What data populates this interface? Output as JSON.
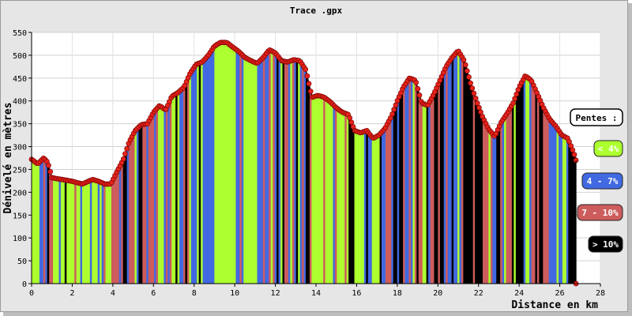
{
  "chart_data": {
    "type": "area",
    "title": "Trace .gpx",
    "xlabel": "Distance en km",
    "ylabel": "Dénivelé en mètres",
    "xlim": [
      0,
      28
    ],
    "ylim": [
      0,
      550
    ],
    "xticks": [
      0,
      2,
      4,
      6,
      8,
      10,
      12,
      14,
      16,
      18,
      20,
      22,
      24,
      26,
      28
    ],
    "yticks": [
      0,
      50,
      100,
      150,
      200,
      250,
      300,
      350,
      400,
      450,
      500,
      550
    ],
    "grid": true,
    "legend_position": "right",
    "legend": {
      "title": "Pentes :",
      "items": [
        {
          "label": "< 4%",
          "color": "#adff2f",
          "text_color": "#ffffff"
        },
        {
          "label": "4 - 7%",
          "color": "#4169e1",
          "text_color": "#ffffff"
        },
        {
          "label": "7 - 10%",
          "color": "#cd5c5c",
          "text_color": "#ffffff"
        },
        {
          "label": "> 10%",
          "color": "#000000",
          "text_color": "#ffffff"
        }
      ]
    },
    "series": [
      {
        "x": [
          0,
          0.3,
          0.6,
          0.8,
          1.0,
          1.2,
          1.5,
          2.0,
          2.5,
          3.0,
          3.3,
          3.6,
          3.9,
          4.2,
          4.5,
          4.8,
          5.1,
          5.4,
          5.7,
          6.0,
          6.3,
          6.6,
          6.9,
          7.2,
          7.5,
          7.8,
          8.1,
          8.4,
          8.7,
          9.0,
          9.3,
          9.6,
          9.9,
          10.2,
          10.5,
          10.8,
          11.1,
          11.4,
          11.7,
          12.0,
          12.3,
          12.6,
          12.9,
          13.2,
          13.5,
          13.8,
          14.1,
          14.4,
          14.7,
          15.0,
          15.3,
          15.6,
          15.9,
          16.2,
          16.5,
          16.8,
          17.1,
          17.4,
          17.7,
          18.0,
          18.3,
          18.6,
          18.9,
          19.2,
          19.5,
          19.8,
          20.1,
          20.4,
          20.7,
          21.0,
          21.3,
          21.6,
          21.9,
          22.2,
          22.5,
          22.8,
          23.1,
          23.4,
          23.7,
          24.0,
          24.3,
          24.6,
          24.9,
          25.2,
          25.5,
          25.8,
          26.1,
          26.4,
          26.7,
          26.8
        ],
        "y": [
          272,
          262,
          275,
          265,
          232,
          230,
          228,
          224,
          218,
          228,
          224,
          218,
          218,
          245,
          270,
          310,
          335,
          348,
          350,
          375,
          390,
          380,
          410,
          418,
          430,
          460,
          480,
          485,
          500,
          520,
          528,
          528,
          518,
          508,
          495,
          488,
          482,
          495,
          512,
          505,
          488,
          485,
          490,
          488,
          468,
          408,
          412,
          408,
          398,
          385,
          375,
          370,
          335,
          330,
          335,
          318,
          325,
          340,
          365,
          400,
          430,
          450,
          445,
          395,
          390,
          415,
          445,
          475,
          495,
          510,
          488,
          440,
          400,
          365,
          338,
          322,
          352,
          372,
          395,
          430,
          455,
          445,
          415,
          385,
          360,
          345,
          325,
          318,
          285,
          270
        ]
      }
    ],
    "end_marker": {
      "x": 26.8,
      "y": 0
    }
  }
}
